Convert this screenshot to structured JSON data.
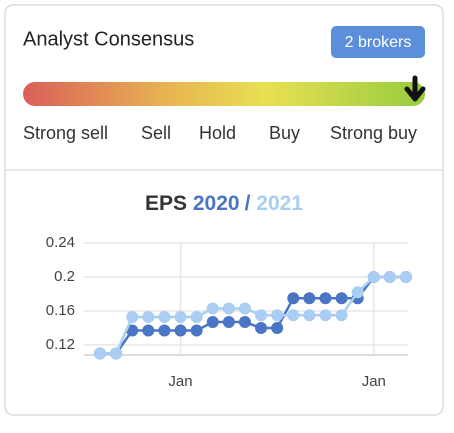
{
  "header": {
    "title": "Analyst Consensus",
    "badge": "2 brokers"
  },
  "consensus_scale": {
    "labels": [
      "Strong sell",
      "Sell",
      "Hold",
      "Buy",
      "Strong buy"
    ]
  },
  "chart_data": {
    "type": "line",
    "title": "EPS",
    "title_separator": "/",
    "categories": [
      null,
      null,
      null,
      null,
      null,
      "Jan",
      null,
      null,
      null,
      null,
      null,
      null,
      null,
      null,
      null,
      null,
      null,
      "Jan",
      null,
      null
    ],
    "series": [
      {
        "name": "2020",
        "color": "#4a74c4",
        "values": [
          0.11,
          0.11,
          0.137,
          0.137,
          0.137,
          0.137,
          0.137,
          0.147,
          0.147,
          0.147,
          0.14,
          0.14,
          0.175,
          0.175,
          0.175,
          0.175,
          0.175,
          0.2,
          0.2,
          0.2
        ]
      },
      {
        "name": "2021",
        "color": "#a9cdf3",
        "values": [
          0.11,
          0.11,
          0.153,
          0.153,
          0.153,
          0.153,
          0.153,
          0.163,
          0.163,
          0.163,
          0.155,
          0.155,
          0.155,
          0.155,
          0.155,
          0.155,
          0.182,
          0.2,
          0.2,
          0.2
        ]
      }
    ],
    "ylim": [
      0.11,
      0.24
    ],
    "yticks": [
      0.12,
      0.16,
      0.2,
      0.24
    ],
    "grid": true
  }
}
